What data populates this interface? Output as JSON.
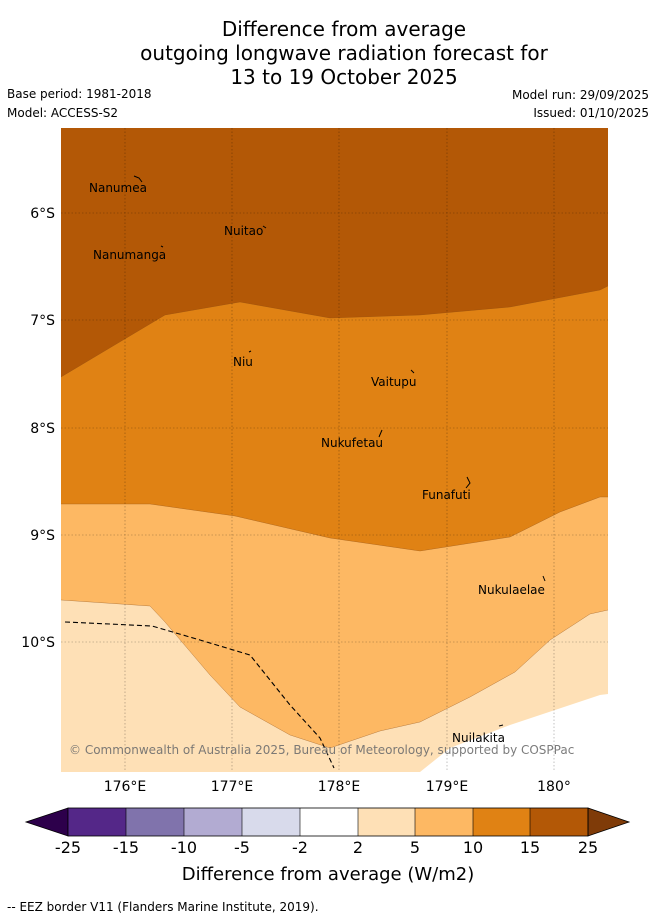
{
  "title": {
    "line1": "Difference from average",
    "line2": "outgoing longwave radiation forecast for",
    "line3": "13 to 19 October 2025"
  },
  "meta": {
    "base_period": "Base period: 1981-2018",
    "model": "Model: ACCESS-S2",
    "model_run": "Model run: 29/09/2025",
    "issued": "Issued: 01/10/2025"
  },
  "map": {
    "lat_labels": [
      "6°S",
      "7°S",
      "8°S",
      "9°S",
      "10°S"
    ],
    "lon_labels": [
      "176°E",
      "177°E",
      "178°E",
      "179°E",
      "180°"
    ],
    "places": [
      "Nanumea",
      "Nuitao",
      "Nanumanga",
      "Niu",
      "Vaitupu",
      "Nukufetau",
      "Funafuti",
      "Nukulaelae",
      "Nuilakita"
    ],
    "copyright": "© Commonwealth of Australia 2025, Bureau of Meteorology, supported by COSPPac",
    "colors": {
      "band_15_25": "#b35806",
      "band_10_15": "#e08214",
      "band_5_10": "#fdb863",
      "band_2_5": "#fee0b6",
      "band_neutral": "#ffffff"
    }
  },
  "colorbar": {
    "ticks": [
      "-25",
      "-15",
      "-10",
      "-5",
      "-2",
      "2",
      "5",
      "10",
      "15",
      "25"
    ],
    "colors": [
      "#2d004b",
      "#542788",
      "#8073ac",
      "#b2abd2",
      "#d8daeb",
      "#ffffff",
      "#fee0b6",
      "#fdb863",
      "#e08214",
      "#b35806",
      "#7f3b08"
    ],
    "label": "Difference from average (W/m2)"
  },
  "footer": {
    "legend_text": "-- EEZ border V11 (Flanders Marine Institute, 2019)."
  }
}
